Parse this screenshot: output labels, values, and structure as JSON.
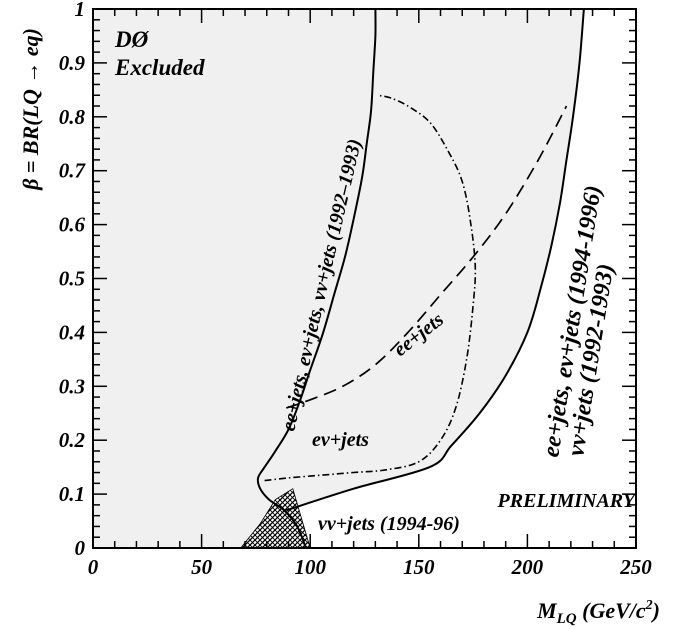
{
  "chart_data": {
    "type": "line",
    "title": "",
    "xlabel": "M_LQ (GeV/c²)",
    "xlabel_main": "M",
    "xlabel_sub": "LQ",
    "xlabel_units": " (GeV/c",
    "xlabel_units_sup": "2",
    "xlabel_units_close": ")",
    "ylabel": "β = BR(LQ → eq)",
    "xlim": [
      0,
      250
    ],
    "ylim": [
      0,
      1
    ],
    "x_ticks": [
      0,
      50,
      100,
      150,
      200,
      250
    ],
    "y_ticks": [
      0,
      0.1,
      0.2,
      0.3,
      0.4,
      0.5,
      0.6,
      0.7,
      0.8,
      0.9,
      1
    ],
    "x_tick_labels": [
      "0",
      "50",
      "100",
      "150",
      "200",
      "250"
    ],
    "y_tick_labels": [
      "0",
      "0.1",
      "0.2",
      "0.3",
      "0.4",
      "0.5",
      "0.6",
      "0.7",
      "0.8",
      "0.9",
      "1"
    ],
    "grid": false,
    "fill_color": "#f0f0f0",
    "series": [
      {
        "name": "ee+jets, eν+jets, νν+jets (1992–1993)",
        "style": "solid",
        "x": [
          98,
          94,
          88,
          81,
          77,
          76,
          79,
          84,
          90,
          95,
          100,
          106,
          111,
          116,
          120,
          124,
          126,
          128,
          129,
          130,
          130
        ],
        "y": [
          0,
          0.04,
          0.07,
          0.09,
          0.11,
          0.13,
          0.15,
          0.18,
          0.22,
          0.27,
          0.33,
          0.4,
          0.47,
          0.54,
          0.61,
          0.69,
          0.75,
          0.81,
          0.88,
          0.95,
          1.0
        ]
      },
      {
        "name": "ee+jets, eν+jets (1994-1996), νν+jets (1992-1993)",
        "style": "solid",
        "x": [
          89,
          120,
          155,
          165,
          178,
          190,
          200,
          206,
          211,
          215,
          218,
          221,
          224,
          226
        ],
        "y": [
          0.07,
          0.11,
          0.15,
          0.19,
          0.25,
          0.32,
          0.4,
          0.48,
          0.56,
          0.64,
          0.72,
          0.8,
          0.9,
          1.0
        ]
      },
      {
        "name": "ee+jets",
        "style": "dashed",
        "x": [
          89,
          100,
          115,
          130,
          145,
          160,
          175,
          190,
          205,
          218
        ],
        "y": [
          0.26,
          0.275,
          0.3,
          0.34,
          0.4,
          0.47,
          0.54,
          0.62,
          0.72,
          0.82
        ]
      },
      {
        "name": "eν+jets",
        "style": "dash-dot",
        "x": [
          79,
          90,
          105,
          120,
          135,
          150,
          160,
          167,
          172,
          175,
          176,
          174,
          170,
          163,
          155,
          145,
          137,
          131
        ],
        "y": [
          0.125,
          0.13,
          0.135,
          0.14,
          0.145,
          0.16,
          0.2,
          0.26,
          0.35,
          0.45,
          0.52,
          0.6,
          0.68,
          0.74,
          0.79,
          0.82,
          0.835,
          0.84
        ]
      },
      {
        "name": "νν+jets (1994-96)",
        "style": "hatched",
        "x": [
          68,
          77,
          84,
          92,
          100,
          68
        ],
        "y": [
          0,
          0.045,
          0.09,
          0.11,
          0,
          0
        ]
      }
    ],
    "annotations": {
      "d0_line1": "DØ",
      "d0_line2": "Excluded",
      "left_curve": "ee+jets, eν+jets, νν+jets (1992–1993)",
      "ee_jets": "ee+jets",
      "enu_jets": "eν+jets",
      "right_curve_line1": "ee+jets, eν+jets (1994-1996)",
      "right_curve_line2": "νν+jets (1992-1993)",
      "preliminary": "PRELIMINARY",
      "nunu_jets": "νν+jets (1994-96)"
    }
  }
}
